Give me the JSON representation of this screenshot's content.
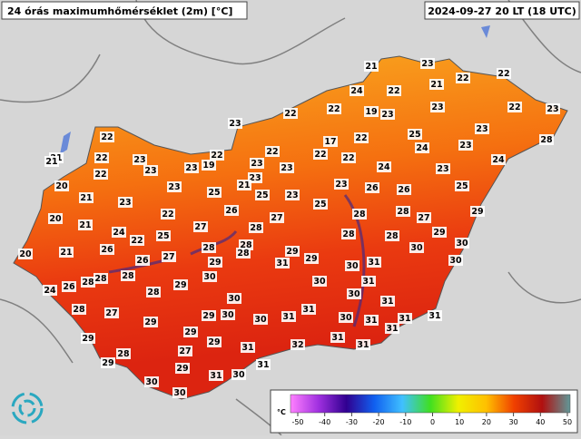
{
  "header": {
    "title": "24 órás maximumhőmérséklet (2m) [°C]",
    "time": "2024-09-27 20 LT (18 UTC)"
  },
  "stations": [
    21,
    23,
    22,
    22,
    21,
    24,
    22,
    22,
    22,
    19,
    23,
    23,
    22,
    23,
    23,
    22,
    23,
    25,
    17,
    22,
    22,
    22,
    22,
    24,
    23,
    28,
    21,
    21,
    22,
    23,
    22,
    23,
    23,
    19,
    23,
    23,
    24,
    23,
    24,
    22,
    20,
    23,
    23,
    21,
    25,
    25,
    23,
    23,
    26,
    26,
    25,
    21,
    23,
    25,
    22,
    26,
    27,
    20,
    21,
    28,
    28,
    27,
    29,
    24,
    22,
    25,
    27,
    28,
    28,
    28,
    29,
    20,
    21,
    26,
    26,
    27,
    28,
    28,
    28,
    29,
    30,
    30,
    29,
    29,
    31,
    28,
    28,
    28,
    30,
    30,
    31,
    30,
    24,
    26,
    28,
    29,
    30,
    31,
    30,
    30,
    28,
    27,
    29,
    30,
    31,
    31,
    31,
    29,
    30,
    30,
    31,
    31,
    31,
    29,
    29,
    29,
    31,
    31,
    31,
    28,
    27,
    32,
    31,
    29,
    29,
    31,
    30,
    31,
    30,
    30
  ],
  "legend": {
    "unit": "°C",
    "ticks": [
      -50,
      -40,
      -30,
      -20,
      -10,
      0,
      10,
      20,
      30,
      40,
      50
    ],
    "colors": [
      "#ff80ff",
      "#a030e0",
      "#300090",
      "#1060f0",
      "#40c0ff",
      "#40e020",
      "#f0f000",
      "#ffc000",
      "#f04000",
      "#b01010",
      "#609898"
    ]
  }
}
